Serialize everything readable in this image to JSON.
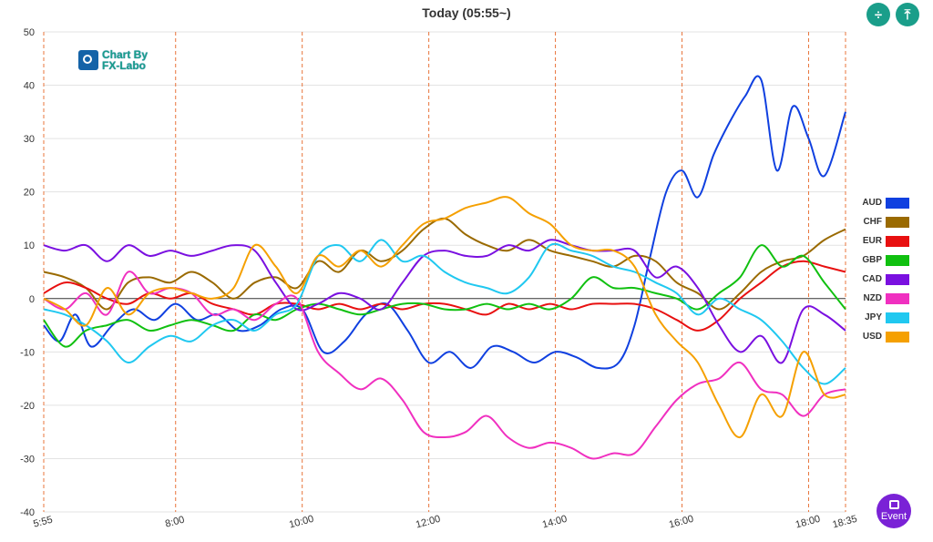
{
  "title": "Today  (05:55~)",
  "logo": {
    "line1": "Chart By",
    "line2": "FX-Labo"
  },
  "event_button": {
    "label": "Event"
  },
  "buttons": {
    "btn1_icon": "split-vertical-icon",
    "btn2_icon": "fit-height-icon"
  },
  "chart_data": {
    "type": "line",
    "title": "Today  (05:55~)",
    "xlabel": "",
    "ylabel": "",
    "ylim": [
      -40,
      50
    ],
    "y_ticks": [
      50,
      40,
      30,
      20,
      10,
      0,
      -10,
      -20,
      -30,
      -40
    ],
    "xlim_minutes": [
      355,
      1115
    ],
    "x_ticks": [
      {
        "label": "5:55",
        "t": 355
      },
      {
        "label": "8:00",
        "t": 480
      },
      {
        "label": "10:00",
        "t": 600
      },
      {
        "label": "12:00",
        "t": 720
      },
      {
        "label": "14:00",
        "t": 840
      },
      {
        "label": "16:00",
        "t": 960
      },
      {
        "label": "18:00",
        "t": 1080
      },
      {
        "label": "18:35",
        "t": 1115
      }
    ],
    "vertical_markers": [
      355,
      480,
      600,
      720,
      840,
      960,
      1080,
      1115
    ],
    "grid": "horizontal",
    "legend_position": "right",
    "series": [
      {
        "name": "AUD",
        "color": "#1040e0",
        "x": [
          355,
          370,
          385,
          400,
          420,
          440,
          460,
          480,
          500,
          520,
          540,
          560,
          580,
          600,
          620,
          640,
          660,
          680,
          700,
          720,
          740,
          760,
          780,
          800,
          820,
          840,
          860,
          880,
          900,
          915,
          930,
          945,
          960,
          975,
          990,
          1005,
          1020,
          1035,
          1050,
          1065,
          1080,
          1095,
          1115
        ],
        "y": [
          -5,
          -8,
          -3,
          -9,
          -5,
          -2,
          -4,
          -1,
          -4,
          -3,
          -6,
          -5,
          -2,
          -2,
          -10,
          -8,
          -3,
          -1,
          -6,
          -12,
          -10,
          -13,
          -9,
          -10,
          -12,
          -10,
          -11,
          -13,
          -12,
          -5,
          8,
          20,
          24,
          19,
          27,
          33,
          38,
          41,
          24,
          36,
          30,
          23,
          35
        ]
      },
      {
        "name": "CHF",
        "color": "#9a6a00",
        "x": [
          355,
          375,
          395,
          415,
          435,
          455,
          475,
          495,
          515,
          535,
          555,
          575,
          595,
          615,
          635,
          655,
          675,
          695,
          715,
          735,
          755,
          775,
          795,
          815,
          835,
          855,
          875,
          895,
          915,
          935,
          955,
          975,
          995,
          1015,
          1035,
          1055,
          1075,
          1095,
          1115
        ],
        "y": [
          5,
          4,
          2,
          -2,
          3,
          4,
          3,
          5,
          3,
          0,
          3,
          4,
          2,
          7,
          5,
          9,
          7,
          9,
          13,
          15,
          12,
          10,
          9,
          11,
          9,
          8,
          7,
          6,
          8,
          7,
          3,
          1,
          -2,
          1,
          5,
          7,
          8,
          11,
          13
        ]
      },
      {
        "name": "EUR",
        "color": "#e81010",
        "x": [
          355,
          375,
          395,
          415,
          435,
          455,
          475,
          495,
          515,
          535,
          555,
          575,
          595,
          615,
          635,
          655,
          675,
          695,
          715,
          735,
          755,
          775,
          795,
          815,
          835,
          855,
          875,
          895,
          915,
          935,
          955,
          975,
          995,
          1015,
          1035,
          1055,
          1075,
          1095,
          1115
        ],
        "y": [
          1,
          3,
          2,
          0,
          -1,
          1,
          0,
          1,
          -1,
          -2,
          -3,
          -1,
          -1,
          -2,
          -1,
          -2,
          -1,
          -2,
          -1,
          -1,
          -2,
          -3,
          -1,
          -2,
          -1,
          -2,
          -1,
          -1,
          -1,
          -2,
          -4,
          -6,
          -4,
          0,
          3,
          6,
          7,
          6,
          5
        ]
      },
      {
        "name": "GBP",
        "color": "#10c010",
        "x": [
          355,
          375,
          395,
          415,
          435,
          455,
          475,
          495,
          515,
          535,
          555,
          575,
          595,
          615,
          635,
          655,
          675,
          695,
          715,
          735,
          755,
          775,
          795,
          815,
          835,
          855,
          875,
          895,
          915,
          935,
          955,
          975,
          995,
          1015,
          1035,
          1055,
          1075,
          1095,
          1115
        ],
        "y": [
          -4,
          -9,
          -6,
          -5,
          -4,
          -6,
          -5,
          -4,
          -5,
          -6,
          -3,
          -4,
          -2,
          -1,
          -2,
          -3,
          -2,
          -1,
          -1,
          -2,
          -2,
          -1,
          -2,
          -1,
          -2,
          0,
          4,
          2,
          2,
          1,
          0,
          -2,
          1,
          4,
          10,
          6,
          8,
          3,
          -2
        ]
      },
      {
        "name": "CAD",
        "color": "#7a10e0",
        "x": [
          355,
          375,
          395,
          415,
          435,
          455,
          475,
          495,
          515,
          535,
          555,
          575,
          595,
          615,
          635,
          655,
          675,
          695,
          715,
          735,
          755,
          775,
          795,
          815,
          835,
          855,
          875,
          895,
          915,
          935,
          955,
          975,
          995,
          1015,
          1035,
          1055,
          1075,
          1095,
          1115
        ],
        "y": [
          10,
          9,
          10,
          7,
          10,
          8,
          9,
          8,
          9,
          10,
          9,
          3,
          -2,
          -1,
          1,
          0,
          -2,
          3,
          8,
          9,
          8,
          8,
          10,
          9,
          11,
          10,
          9,
          9,
          9,
          4,
          6,
          2,
          -5,
          -10,
          -7,
          -12,
          -2,
          -3,
          -6
        ]
      },
      {
        "name": "NZD",
        "color": "#f030c0",
        "x": [
          355,
          375,
          395,
          415,
          435,
          455,
          475,
          495,
          515,
          535,
          555,
          575,
          595,
          615,
          635,
          655,
          675,
          695,
          715,
          735,
          755,
          775,
          795,
          815,
          835,
          855,
          875,
          895,
          915,
          935,
          955,
          975,
          995,
          1015,
          1035,
          1055,
          1075,
          1095,
          1115
        ],
        "y": [
          0,
          -2,
          1,
          -3,
          5,
          1,
          2,
          1,
          -3,
          -2,
          -4,
          -1,
          0,
          -10,
          -14,
          -17,
          -15,
          -19,
          -25,
          -26,
          -25,
          -22,
          -26,
          -28,
          -27,
          -28,
          -30,
          -29,
          -29,
          -24,
          -19,
          -16,
          -15,
          -12,
          -17,
          -18,
          -22,
          -18,
          -17
        ]
      },
      {
        "name": "JPY",
        "color": "#20c8f0",
        "x": [
          355,
          375,
          395,
          415,
          435,
          455,
          475,
          495,
          515,
          535,
          555,
          575,
          595,
          615,
          635,
          655,
          675,
          695,
          715,
          735,
          755,
          775,
          795,
          815,
          835,
          855,
          875,
          895,
          915,
          935,
          955,
          975,
          995,
          1015,
          1035,
          1055,
          1075,
          1095,
          1115
        ],
        "y": [
          -2,
          -3,
          -5,
          -8,
          -12,
          -9,
          -7,
          -8,
          -5,
          -4,
          -6,
          -3,
          -1,
          8,
          10,
          7,
          11,
          7,
          8,
          5,
          3,
          2,
          1,
          4,
          10,
          9,
          8,
          6,
          5,
          3,
          1,
          -3,
          0,
          -2,
          -4,
          -8,
          -13,
          -16,
          -13
        ]
      },
      {
        "name": "USD",
        "color": "#f5a000",
        "x": [
          355,
          375,
          395,
          415,
          435,
          455,
          475,
          495,
          515,
          535,
          555,
          575,
          595,
          615,
          635,
          655,
          675,
          695,
          715,
          735,
          755,
          775,
          795,
          815,
          835,
          855,
          875,
          895,
          915,
          935,
          955,
          975,
          995,
          1015,
          1035,
          1055,
          1075,
          1095,
          1115
        ],
        "y": [
          0,
          -2,
          -5,
          2,
          -3,
          1,
          2,
          1,
          0,
          2,
          10,
          6,
          1,
          8,
          6,
          9,
          6,
          10,
          14,
          15,
          17,
          18,
          19,
          16,
          14,
          10,
          9,
          9,
          6,
          -3,
          -8,
          -12,
          -20,
          -26,
          -18,
          -22,
          -10,
          -18,
          -18
        ]
      }
    ]
  }
}
